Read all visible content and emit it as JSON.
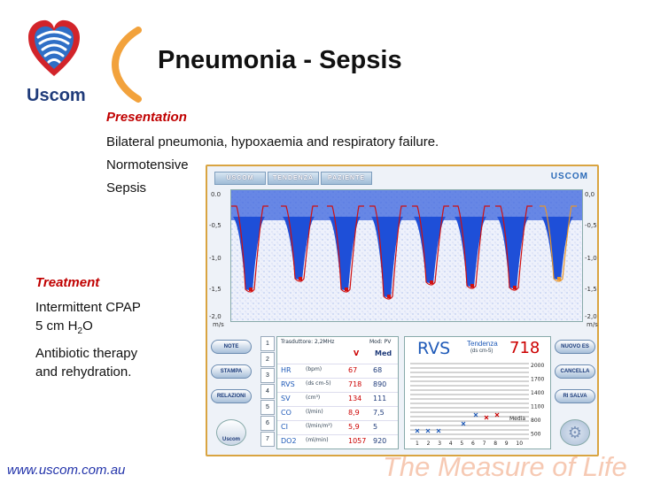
{
  "title": "Pneumonia - Sepsis",
  "logo": {
    "text": "Uscom"
  },
  "presentation": {
    "heading": "Presentation",
    "lines": [
      "Bilateral pneumonia, hypoxaemia and respiratory failure.",
      "Normotensive",
      "Sepsis"
    ]
  },
  "treatment": {
    "heading": "Treatment",
    "line1": "Intermittent CPAP",
    "line2_pre": "5 cm H",
    "line2_sub": "2",
    "line2_post": "O",
    "line3": "Antibiotic therapy",
    "line4": "and rehydration."
  },
  "footer": {
    "url": "www.uscom.com.au",
    "tagline": "The Measure of Life"
  },
  "app": {
    "tabs": [
      "USCOM",
      "TENDENZA",
      "PAZIENTE"
    ],
    "brand": "USCOM",
    "axis_left": [
      "0.0",
      "-0,5",
      "-1,0",
      "-1,5",
      "-2,0"
    ],
    "axis_left_unit": "m/s",
    "axis_right": [
      "0,0",
      "-0,5",
      "-1,0",
      "-1,5",
      "-2,0"
    ],
    "axis_right_unit": "m/s",
    "left_buttons": [
      "NOTE",
      "STAMPA",
      "RELAZIONI"
    ],
    "uscom_button": "Uscom",
    "right_buttons": [
      "NUOVO ES",
      "CANCELLA",
      "RI SALVA"
    ],
    "channel_numbers": [
      "1",
      "2",
      "3",
      "4",
      "5",
      "6",
      "7"
    ],
    "table": {
      "transducer": "Trasduttore: 2,2MHz",
      "mode": "Mod: PV",
      "col_v": "V",
      "col_med": "Med",
      "rows": [
        {
          "param": "HR",
          "unit": "(bpm)",
          "v": "67",
          "med": "68"
        },
        {
          "param": "RVS",
          "unit": "(ds cm-5)",
          "v": "718",
          "med": "890"
        },
        {
          "param": "SV",
          "unit": "(cm³)",
          "v": "134",
          "med": "111"
        },
        {
          "param": "CO",
          "unit": "(l/min)",
          "v": "8,9",
          "med": "7,5"
        },
        {
          "param": "CI",
          "unit": "(l/min/m²)",
          "v": "5,9",
          "med": "5"
        },
        {
          "param": "DO2",
          "unit": "(ml/min)",
          "v": "1057",
          "med": "920"
        }
      ]
    },
    "trend": {
      "param": "RVS",
      "label": "Tendenza",
      "unit": "(ds cm-5)",
      "value": "718",
      "y_ticks": [
        "2000",
        "1700",
        "1400",
        "1100",
        "800",
        "500"
      ],
      "media_label": "Media",
      "x_ticks": [
        "1",
        "2",
        "3",
        "4",
        "5",
        "6",
        "7",
        "8",
        "9",
        "10"
      ]
    }
  },
  "colors": {
    "title": "#111111",
    "accent_red": "#c00000",
    "doppler_blue": "#1e4fd8",
    "envelope_red": "#d01010",
    "frame_orange": "#d9a441"
  }
}
